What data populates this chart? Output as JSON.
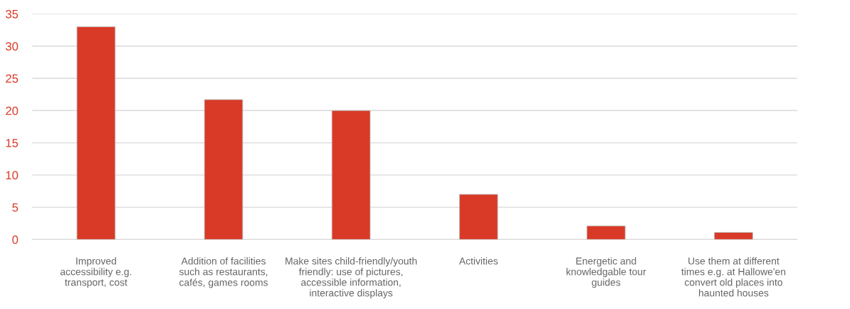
{
  "chart_data": {
    "type": "bar",
    "categories": [
      "Improved\naccessibility e.g.\ntransport, cost",
      "Addition of facilities\nsuch as restaurants,\ncafés, games rooms",
      "Make sites child-friendly/youth\nfriendly: use of pictures,\naccessible information,\ninteractive displays",
      "Activities",
      "Energetic and\nknowledgable tour\nguides",
      "Use them at different\ntimes e.g. at Hallowe'en\nconvert old places into\nhaunted houses"
    ],
    "values": [
      33,
      21.7,
      20,
      7,
      2.1,
      1.1
    ],
    "color": "#d93a27",
    "ylim": [
      0,
      35
    ],
    "yticks": [
      0,
      5,
      10,
      15,
      20,
      25,
      30,
      35
    ],
    "grid": "y"
  }
}
